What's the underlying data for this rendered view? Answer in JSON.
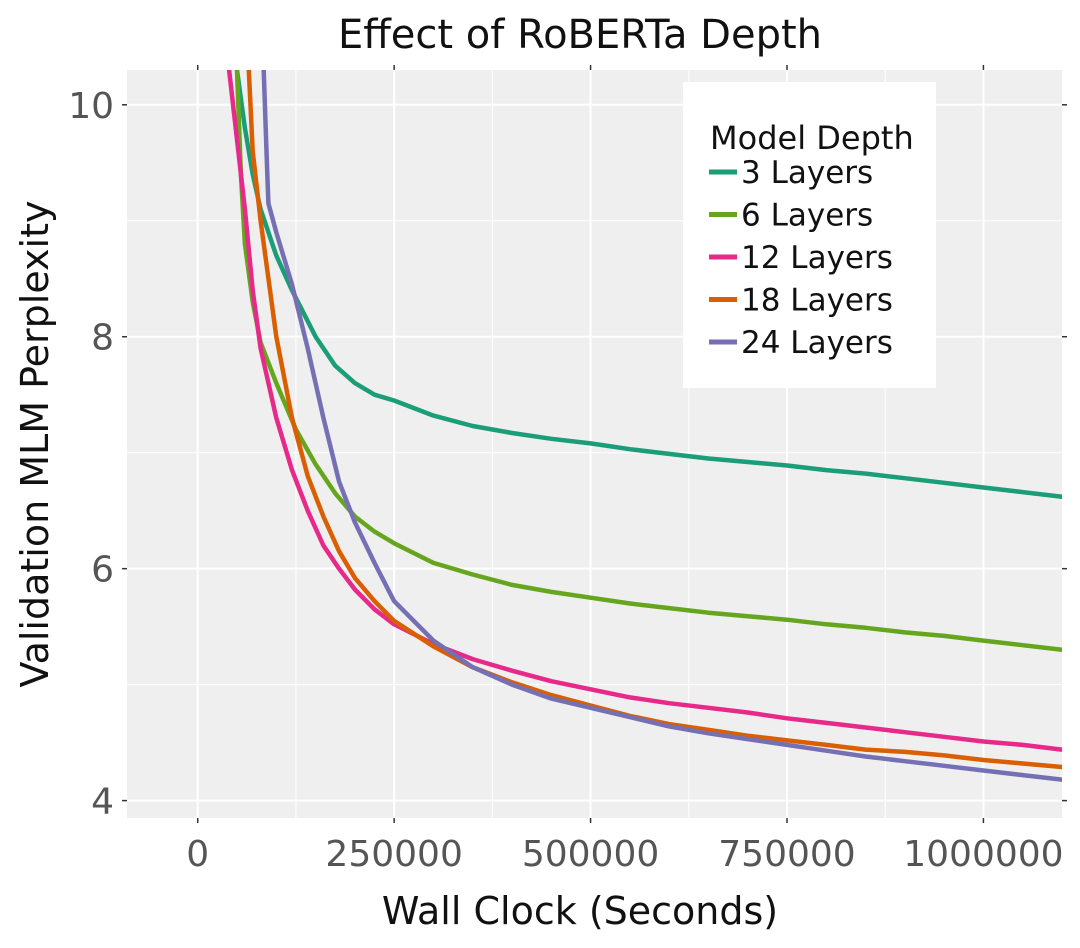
{
  "chart_data": {
    "type": "line",
    "title": "Effect of RoBERTa Depth",
    "xlabel": "Wall Clock (Seconds)",
    "ylabel": "Validation MLM Perplexity",
    "xlim": [
      -90000,
      1100000
    ],
    "ylim": [
      3.85,
      10.3
    ],
    "xticks": [
      0,
      250000,
      500000,
      750000,
      1000000
    ],
    "xtick_labels": [
      "0",
      "250000",
      "500000",
      "750000",
      "1000000"
    ],
    "yticks": [
      4,
      6,
      8,
      10
    ],
    "ytick_labels": [
      "4",
      "6",
      "8",
      "10"
    ],
    "grid": true,
    "legend": {
      "title": "Model Depth",
      "position": "top-right"
    },
    "series": [
      {
        "name": "3 Layers",
        "color": "#1b9e77",
        "x": [
          50000,
          60000,
          70000,
          80000,
          100000,
          120000,
          150000,
          175000,
          200000,
          225000,
          250000,
          300000,
          350000,
          400000,
          450000,
          500000,
          550000,
          600000,
          650000,
          700000,
          750000,
          800000,
          850000,
          900000,
          950000,
          1000000,
          1050000,
          1100000
        ],
        "y": [
          10.3,
          9.8,
          9.4,
          9.1,
          8.7,
          8.4,
          8.0,
          7.75,
          7.6,
          7.5,
          7.45,
          7.32,
          7.23,
          7.17,
          7.12,
          7.08,
          7.03,
          6.99,
          6.95,
          6.92,
          6.89,
          6.85,
          6.82,
          6.78,
          6.74,
          6.7,
          6.66,
          6.62
        ]
      },
      {
        "name": "6 Layers",
        "color": "#66a61e",
        "x": [
          50000,
          55000,
          60000,
          70000,
          80000,
          100000,
          125000,
          150000,
          175000,
          200000,
          225000,
          250000,
          300000,
          350000,
          400000,
          450000,
          500000,
          550000,
          600000,
          650000,
          700000,
          750000,
          800000,
          850000,
          900000,
          950000,
          1000000,
          1050000,
          1100000
        ],
        "y": [
          10.3,
          9.4,
          8.8,
          8.3,
          7.95,
          7.6,
          7.2,
          6.9,
          6.65,
          6.45,
          6.32,
          6.22,
          6.05,
          5.95,
          5.86,
          5.8,
          5.75,
          5.7,
          5.66,
          5.62,
          5.59,
          5.56,
          5.52,
          5.49,
          5.45,
          5.42,
          5.38,
          5.34,
          5.3
        ]
      },
      {
        "name": "12 Layers",
        "color": "#e7298a",
        "x": [
          40000,
          50000,
          60000,
          70000,
          80000,
          100000,
          120000,
          140000,
          160000,
          180000,
          200000,
          225000,
          250000,
          300000,
          350000,
          400000,
          450000,
          500000,
          550000,
          600000,
          650000,
          700000,
          750000,
          800000,
          850000,
          900000,
          950000,
          1000000,
          1050000,
          1100000
        ],
        "y": [
          10.3,
          9.7,
          9.1,
          8.4,
          7.9,
          7.3,
          6.85,
          6.5,
          6.2,
          6.0,
          5.82,
          5.65,
          5.52,
          5.35,
          5.22,
          5.12,
          5.03,
          4.96,
          4.89,
          4.84,
          4.8,
          4.76,
          4.71,
          4.67,
          4.63,
          4.59,
          4.55,
          4.51,
          4.48,
          4.44
        ]
      },
      {
        "name": "18 Layers",
        "color": "#d95f02",
        "x": [
          65000,
          70000,
          80000,
          100000,
          120000,
          140000,
          160000,
          180000,
          200000,
          225000,
          250000,
          300000,
          350000,
          400000,
          450000,
          500000,
          550000,
          600000,
          650000,
          700000,
          750000,
          800000,
          850000,
          900000,
          950000,
          1000000,
          1050000,
          1100000
        ],
        "y": [
          10.3,
          9.6,
          9.0,
          8.0,
          7.3,
          6.8,
          6.45,
          6.15,
          5.92,
          5.72,
          5.55,
          5.33,
          5.15,
          5.02,
          4.91,
          4.82,
          4.73,
          4.66,
          4.61,
          4.56,
          4.52,
          4.48,
          4.44,
          4.42,
          4.39,
          4.35,
          4.32,
          4.29
        ]
      },
      {
        "name": "24 Layers",
        "color": "#7570b3",
        "x": [
          84000,
          86000,
          88000,
          90000,
          100000,
          120000,
          140000,
          160000,
          180000,
          200000,
          225000,
          250000,
          275000,
          300000,
          350000,
          400000,
          450000,
          500000,
          550000,
          600000,
          650000,
          700000,
          750000,
          800000,
          850000,
          900000,
          950000,
          1000000,
          1050000,
          1100000
        ],
        "y": [
          10.3,
          9.9,
          9.5,
          9.15,
          8.9,
          8.45,
          7.9,
          7.3,
          6.75,
          6.4,
          6.05,
          5.72,
          5.55,
          5.38,
          5.15,
          5.0,
          4.88,
          4.8,
          4.72,
          4.64,
          4.58,
          4.53,
          4.48,
          4.43,
          4.38,
          4.34,
          4.3,
          4.26,
          4.22,
          4.18
        ]
      }
    ]
  }
}
